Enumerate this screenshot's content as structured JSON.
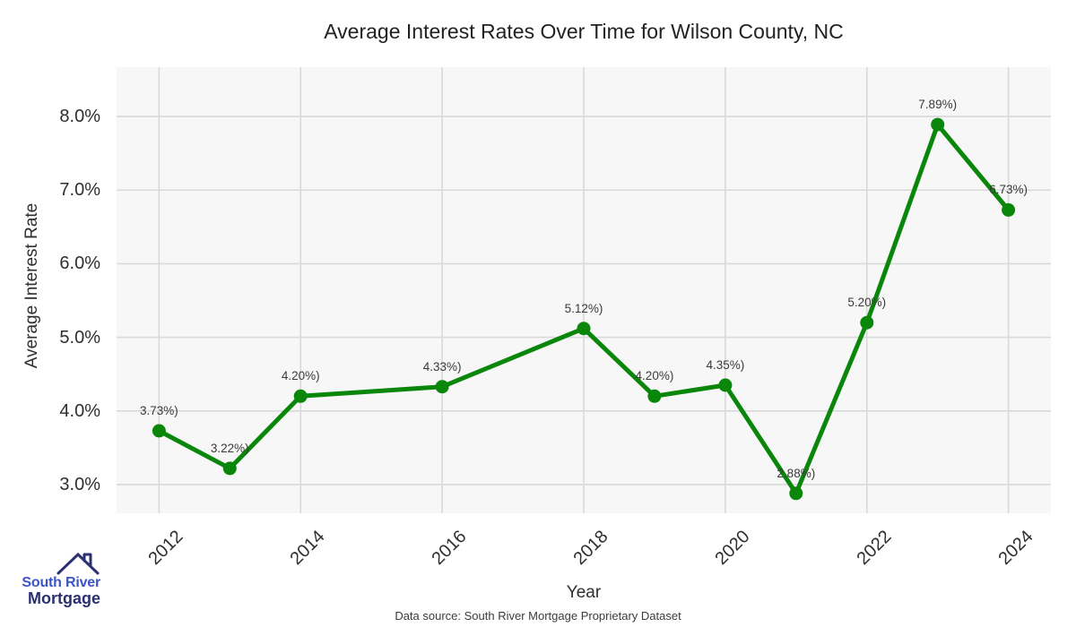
{
  "chart": {
    "title": "Average Interest Rates Over Time for Wilson County, NC",
    "xlabel": "Year",
    "ylabel": "Average Interest Rate"
  },
  "chart_data": {
    "type": "line",
    "title": "Average Interest Rates Over Time for Wilson County, NC",
    "xlabel": "Year",
    "ylabel": "Average Interest Rate",
    "x": [
      2012,
      2013,
      2014,
      2016,
      2018,
      2019,
      2020,
      2021,
      2022,
      2023,
      2024
    ],
    "values": [
      3.73,
      3.22,
      4.2,
      4.33,
      5.12,
      4.2,
      4.35,
      2.88,
      5.2,
      7.89,
      6.73
    ],
    "point_labels": [
      "3.73%)",
      "3.22%)",
      "4.20%)",
      "4.33%)",
      "5.12%)",
      "4.20%)",
      "4.35%)",
      "2.88%)",
      "5.20%)",
      "7.89%)",
      "6.73%)"
    ],
    "x_ticks": [
      2012,
      2014,
      2016,
      2018,
      2020,
      2022,
      2024
    ],
    "y_ticks": [
      "3.0%",
      "4.0%",
      "5.0%",
      "6.0%",
      "7.0%",
      "8.0%"
    ],
    "y_tick_values": [
      3,
      4,
      5,
      6,
      7,
      8
    ],
    "xlim": [
      2011.4,
      2024.6
    ],
    "ylim": [
      2.61,
      8.67
    ],
    "grid": true,
    "legend": "none",
    "line_color": "#0a860a",
    "marker_color": "#0a860a",
    "grid_color": "#d9d9d9",
    "plot_bg": "#f7f7f7"
  },
  "footer": {
    "source": "Data source: South River Mortgage Proprietary Dataset"
  },
  "logo": {
    "line1": "South River",
    "line2": "Mortgage",
    "accent": "#3c55c5",
    "dark": "#2b3170"
  }
}
